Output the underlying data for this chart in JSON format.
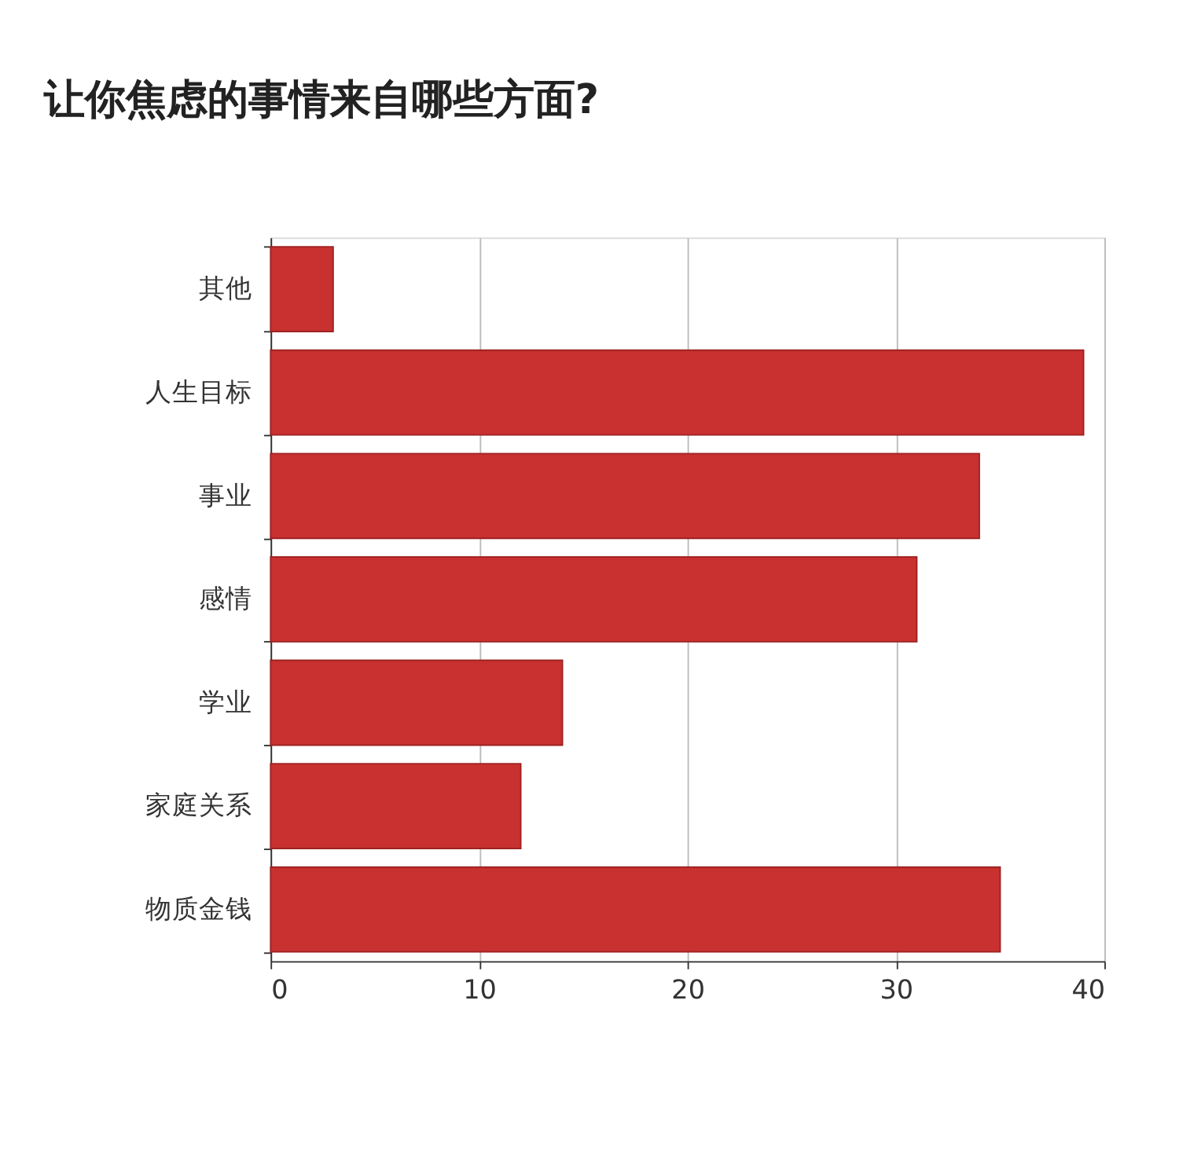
{
  "chart_data": {
    "type": "bar",
    "orientation": "horizontal",
    "title": "让你焦虑的事情来自哪些方面?",
    "categories": [
      "其他",
      "人生目标",
      "事业",
      "感情",
      "学业",
      "家庭关系",
      "物质金钱"
    ],
    "values": [
      3,
      39,
      34,
      31,
      14,
      12,
      35
    ],
    "color": "#c8312f",
    "xlim": [
      0,
      40
    ],
    "xticks": [
      0,
      10,
      20,
      30,
      40
    ],
    "grid": "x"
  }
}
